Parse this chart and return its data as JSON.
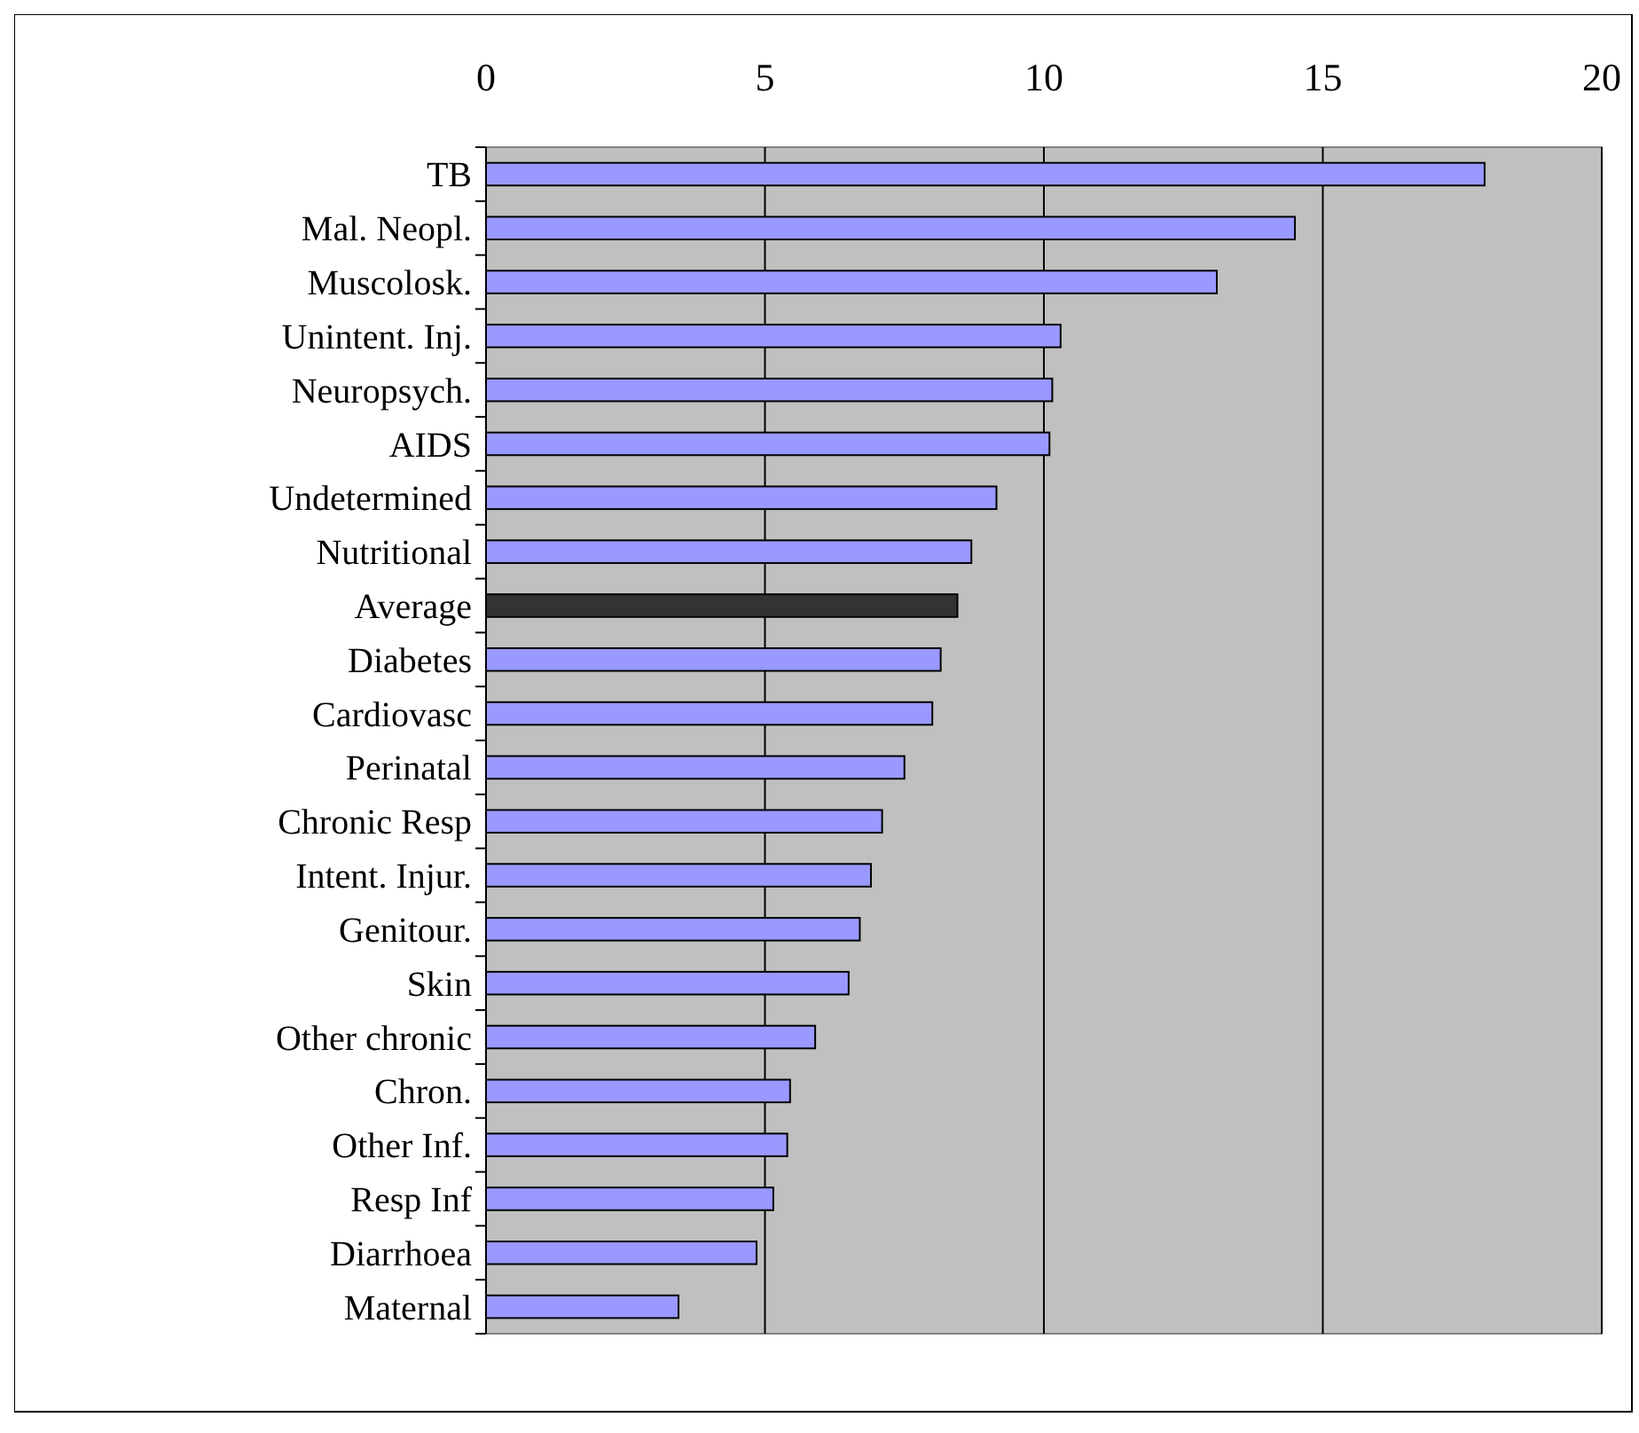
{
  "chart_data": {
    "type": "bar",
    "orientation": "horizontal",
    "categories": [
      "TB",
      "Mal. Neopl.",
      "Muscolosk.",
      "Unintent. Inj.",
      "Neuropsych.",
      "AIDS",
      "Undetermined",
      "Nutritional",
      "Average",
      "Diabetes",
      "Cardiovasc",
      "Perinatal",
      "Chronic Resp",
      "Intent. Injur.",
      "Genitour.",
      "Skin",
      "Other chronic",
      "Chron.",
      "Other Inf.",
      "Resp Inf",
      "Diarrhoea",
      "Maternal"
    ],
    "values": [
      17.9,
      14.5,
      13.1,
      10.3,
      10.15,
      10.1,
      9.15,
      8.7,
      8.45,
      8.15,
      8.0,
      7.5,
      7.1,
      6.9,
      6.7,
      6.5,
      5.9,
      5.45,
      5.4,
      5.15,
      4.85,
      3.45
    ],
    "colors": [
      "#9999ff",
      "#9999ff",
      "#9999ff",
      "#9999ff",
      "#9999ff",
      "#9999ff",
      "#9999ff",
      "#9999ff",
      "#333333",
      "#9999ff",
      "#9999ff",
      "#9999ff",
      "#9999ff",
      "#9999ff",
      "#9999ff",
      "#9999ff",
      "#9999ff",
      "#9999ff",
      "#9999ff",
      "#9999ff",
      "#9999ff",
      "#9999ff"
    ],
    "xlim": [
      0,
      20
    ],
    "xticks": [
      0,
      5,
      10,
      15,
      20
    ],
    "grid": "x"
  }
}
